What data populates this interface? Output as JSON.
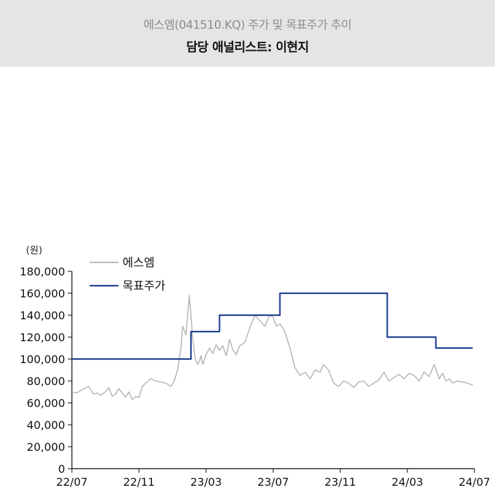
{
  "header": {
    "subtitle": "에스엠(041510.KQ) 주가 및 목표주가 추이",
    "title": "담당 애널리스트: 이현지"
  },
  "chart_data": {
    "type": "line",
    "unit_label": "(원)",
    "ylim": [
      0,
      180000
    ],
    "y_ticks": [
      0,
      20000,
      40000,
      60000,
      80000,
      100000,
      120000,
      140000,
      160000,
      180000
    ],
    "y_tick_labels": [
      "0",
      "20,000",
      "40,000",
      "60,000",
      "80,000",
      "100,000",
      "120,000",
      "140,000",
      "160,000",
      "180,000"
    ],
    "x_range": [
      0,
      24
    ],
    "x_ticks": [
      0,
      4,
      8,
      12,
      16,
      20,
      24
    ],
    "x_tick_labels": [
      "22/07",
      "22/11",
      "23/03",
      "23/07",
      "23/11",
      "24/03",
      "24/07"
    ],
    "legend": {
      "position": "top-left"
    },
    "colors": {
      "price": "#b8b8b8",
      "target": "#1f3f8f"
    },
    "series": [
      {
        "name": "에스엠",
        "key": "price",
        "x": [
          0,
          0.3,
          0.6,
          1.0,
          1.3,
          1.5,
          1.7,
          2.0,
          2.2,
          2.4,
          2.6,
          2.8,
          3.0,
          3.2,
          3.4,
          3.6,
          3.8,
          4.0,
          4.2,
          4.4,
          4.7,
          5.0,
          5.3,
          5.6,
          5.9,
          6.1,
          6.3,
          6.5,
          6.6,
          6.8,
          7.0,
          7.1,
          7.2,
          7.35,
          7.5,
          7.6,
          7.7,
          7.8,
          8.0,
          8.2,
          8.4,
          8.6,
          8.8,
          9.0,
          9.2,
          9.4,
          9.6,
          9.8,
          10.0,
          10.3,
          10.6,
          10.9,
          11.2,
          11.5,
          11.8,
          12.0,
          12.2,
          12.4,
          12.6,
          12.8,
          13.0,
          13.3,
          13.6,
          13.9,
          14.2,
          14.5,
          14.8,
          15.0,
          15.3,
          15.6,
          15.9,
          16.2,
          16.5,
          16.8,
          17.1,
          17.4,
          17.7,
          18.0,
          18.3,
          18.6,
          18.9,
          19.2,
          19.5,
          19.8,
          20.1,
          20.4,
          20.7,
          21.0,
          21.3,
          21.6,
          21.9,
          22.1,
          22.3,
          22.5,
          22.7,
          23.0,
          23.3,
          23.6,
          23.9
        ],
        "values": [
          70000,
          69000,
          72000,
          75000,
          68000,
          69000,
          67000,
          70000,
          74000,
          66000,
          68000,
          73000,
          69000,
          65000,
          70000,
          63000,
          66000,
          65000,
          75000,
          78000,
          82000,
          80000,
          79000,
          78000,
          75000,
          80000,
          90000,
          110000,
          130000,
          122000,
          158000,
          140000,
          118000,
          100000,
          95000,
          98000,
          103000,
          95000,
          104000,
          110000,
          105000,
          113000,
          108000,
          112000,
          103000,
          118000,
          108000,
          104000,
          112000,
          115000,
          128000,
          140000,
          135000,
          130000,
          140000,
          138000,
          130000,
          132000,
          128000,
          120000,
          110000,
          92000,
          85000,
          88000,
          82000,
          90000,
          88000,
          95000,
          90000,
          78000,
          75000,
          80000,
          78000,
          74000,
          79000,
          80000,
          75000,
          78000,
          81000,
          88000,
          80000,
          83000,
          86000,
          82000,
          87000,
          85000,
          80000,
          88000,
          84000,
          95000,
          82000,
          87000,
          80000,
          82000,
          78000,
          80000,
          79000,
          78000,
          76000
        ]
      },
      {
        "name": "목표주가",
        "key": "target",
        "step": true,
        "x": [
          0,
          7.1,
          7.1,
          8.8,
          8.8,
          12.4,
          12.4,
          18.8,
          18.8,
          21.7,
          21.7,
          23.9
        ],
        "values": [
          100000,
          100000,
          125000,
          125000,
          140000,
          140000,
          160000,
          160000,
          120000,
          120000,
          110000,
          110000
        ]
      }
    ]
  }
}
